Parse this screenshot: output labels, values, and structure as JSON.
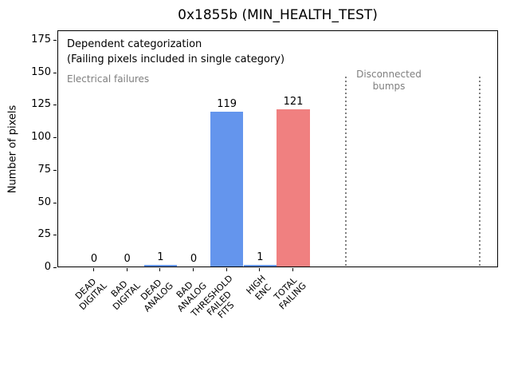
{
  "window": {
    "background": "#ffffff"
  },
  "chart_data": {
    "type": "bar",
    "title": "0x1855b (MIN_HEALTH_TEST)",
    "xlabel": "",
    "ylabel": "Number of pixels",
    "categories": [
      "DEAD\nDIGITAL",
      "BAD\nDIGITAL",
      "DEAD\nANALOG",
      "BAD\nANALOG",
      "THRESHOLD\nFAILED\nFITS",
      "HIGH\nENC",
      "TOTAL\nFAILING"
    ],
    "values": [
      0,
      0,
      1,
      0,
      119,
      1,
      121
    ],
    "value_labels": [
      "0",
      "0",
      "1",
      "0",
      "119",
      "1",
      "121"
    ],
    "bar_colors": [
      "#6495ed",
      "#6495ed",
      "#6495ed",
      "#6495ed",
      "#6495ed",
      "#6495ed",
      "#f08080"
    ],
    "ylim": [
      0,
      182
    ],
    "yticks": [
      0,
      25,
      50,
      75,
      100,
      125,
      150,
      175
    ],
    "grid": false,
    "legend": "none",
    "annotations": [
      {
        "text": "Dependent categorization",
        "color": "#000000"
      },
      {
        "text": "(Failing pixels included in single category)",
        "color": "#000000"
      },
      {
        "text": "Electrical failures",
        "color": "#7f7f7f"
      },
      {
        "text": "Disconnected\nbumps",
        "color": "#7f7f7f"
      }
    ],
    "dividers": {
      "count": 2,
      "style": "dotted",
      "color": "#7f7f7f"
    }
  }
}
